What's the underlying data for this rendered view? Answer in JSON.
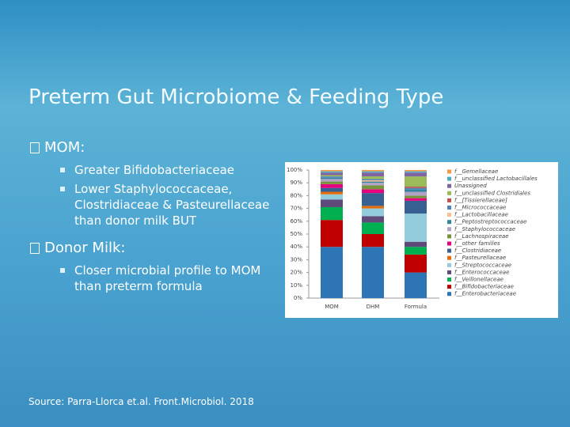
{
  "title": "Preterm Gut Microbiome & Feeding Type",
  "bullets": [
    {
      "text": "MOM:",
      "items": [
        "Greater Bifidobacteriaceae",
        "Lower Staphylococcaceae, Clostridiaceae & Pasteurellaceae than donor milk BUT"
      ]
    },
    {
      "text": "Donor Milk:",
      "items": [
        "Closer microbial profile to MOM than preterm formula"
      ]
    }
  ],
  "source": "Source: Parra-Llorca et.al. Front.Microbiol. 2018",
  "chart_data": {
    "type": "stacked-bar",
    "categories": [
      "MOM",
      "DHM",
      "Formula"
    ],
    "ylim": [
      0,
      100
    ],
    "yticks": [
      {
        "value": 0,
        "label": "0%"
      },
      {
        "value": 10,
        "label": "10%"
      },
      {
        "value": 20,
        "label": "20%"
      },
      {
        "value": 30,
        "label": "30%"
      },
      {
        "value": 40,
        "label": "40%"
      },
      {
        "value": 50,
        "label": "50%"
      },
      {
        "value": 60,
        "label": "60%"
      },
      {
        "value": 70,
        "label": "70%"
      },
      {
        "value": 80,
        "label": "80%"
      },
      {
        "value": 90,
        "label": "90%"
      },
      {
        "value": 100,
        "label": "100%"
      }
    ],
    "series": [
      {
        "name": "f__Gemellaceae",
        "color": "#f79646",
        "values": [
          1,
          1,
          1
        ]
      },
      {
        "name": "f__unclassified Lactobacillales",
        "color": "#4bacc6",
        "values": [
          1,
          1,
          1
        ]
      },
      {
        "name": "Unassigned",
        "color": "#8064a2",
        "values": [
          2,
          3,
          3
        ]
      },
      {
        "name": "f__unclassified Clostridiales",
        "color": "#9bbb59",
        "values": [
          1,
          2,
          8
        ]
      },
      {
        "name": "f__[Tissierellaceae]",
        "color": "#c0504d",
        "values": [
          0,
          0,
          1
        ]
      },
      {
        "name": "f__Micrococcaceae",
        "color": "#4f81bd",
        "values": [
          1,
          1,
          1
        ]
      },
      {
        "name": "f__Lactobacillaceae",
        "color": "#fac090",
        "values": [
          0,
          1,
          0
        ]
      },
      {
        "name": "f__Peptostreptococcaceae",
        "color": "#31859c",
        "values": [
          1,
          1,
          2
        ]
      },
      {
        "name": "f__Staphylococcaceae",
        "color": "#b3a2c7",
        "values": [
          2,
          2,
          3
        ]
      },
      {
        "name": "f__Lachnospiraceae",
        "color": "#77933c",
        "values": [
          2,
          3,
          2
        ]
      },
      {
        "name": "f__other families",
        "color": "#e6007e",
        "values": [
          3,
          3,
          2
        ]
      },
      {
        "name": "f__Clostridiaceae",
        "color": "#376092",
        "values": [
          3,
          10,
          10
        ]
      },
      {
        "name": "f__Pasteurellaceae",
        "color": "#e46c0a",
        "values": [
          2,
          2,
          0
        ]
      },
      {
        "name": "f__Streptococcaceae",
        "color": "#93cddd",
        "values": [
          4,
          6,
          22
        ]
      },
      {
        "name": "f__Enterococcaceae",
        "color": "#604a7b",
        "values": [
          6,
          5,
          4
        ]
      },
      {
        "name": "f__Veillonellaceae",
        "color": "#00b050",
        "values": [
          10,
          9,
          6
        ]
      },
      {
        "name": "f__Bifidobacteriaceae",
        "color": "#c00000",
        "values": [
          21,
          10,
          14
        ]
      },
      {
        "name": "f__Enterobacteriaceae",
        "color": "#2e75b6",
        "values": [
          40,
          40,
          20
        ]
      }
    ]
  }
}
